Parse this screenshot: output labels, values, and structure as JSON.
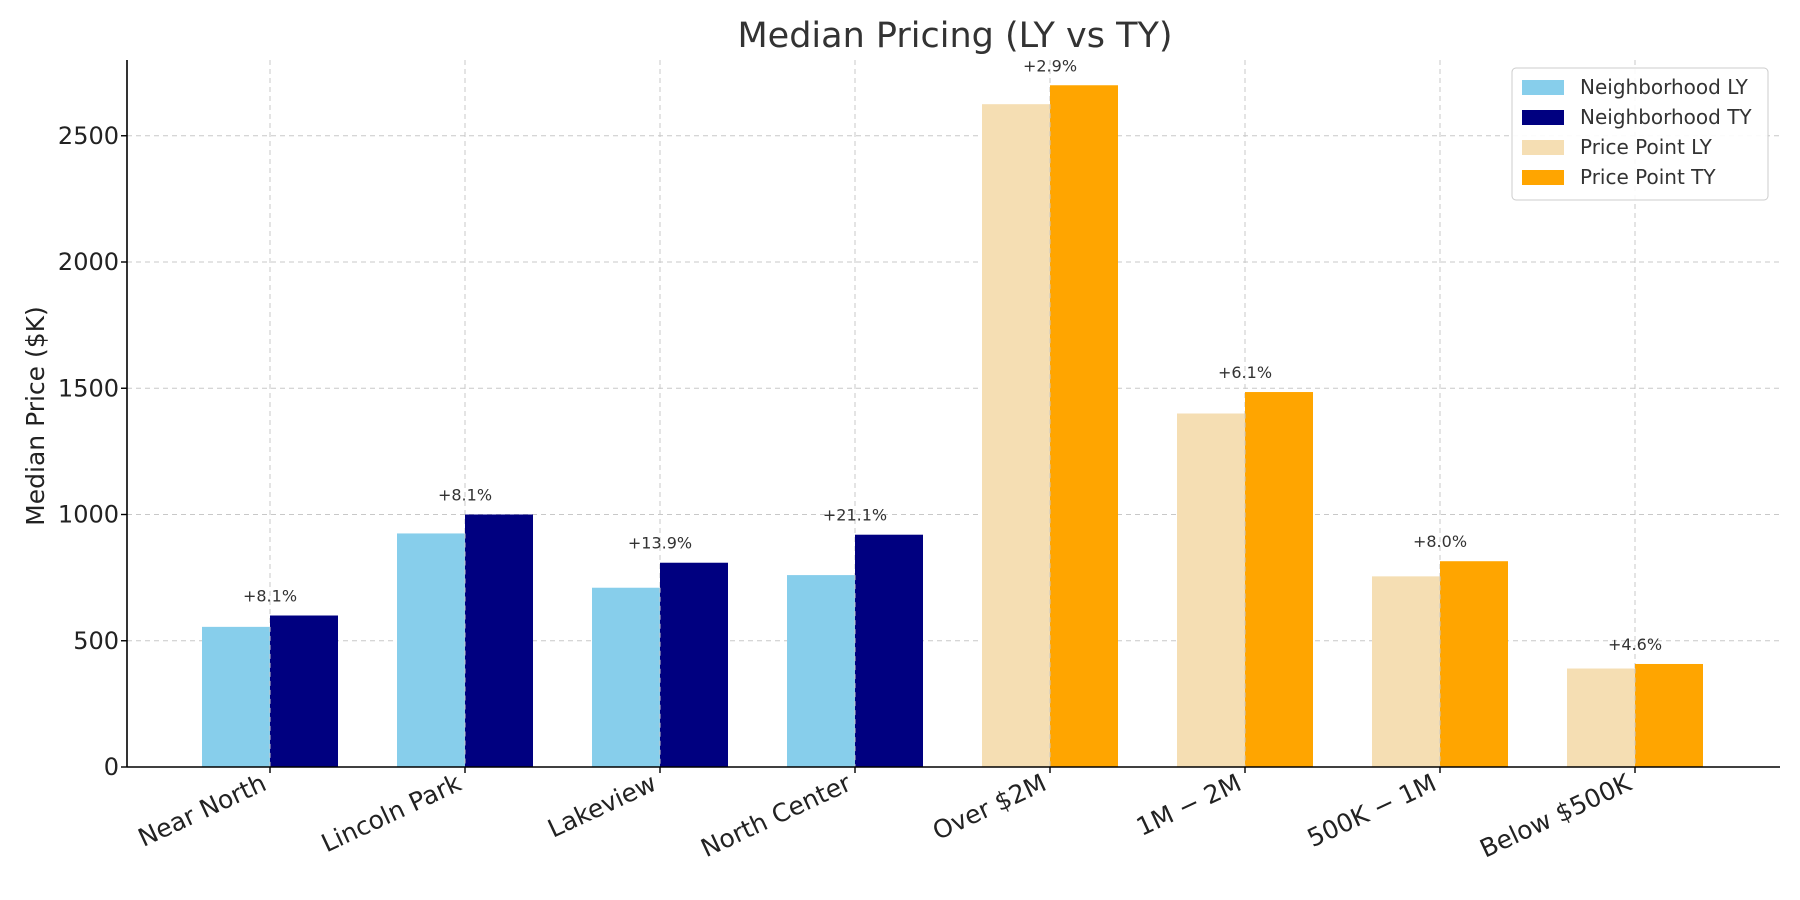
{
  "chart_data": {
    "type": "bar",
    "title": "Median Pricing (LY vs TY)",
    "xlabel": "",
    "ylabel": "Median Price ($K)",
    "ylim": [
      0,
      2800
    ],
    "yticks": [
      0,
      500,
      1000,
      1500,
      2000,
      2500
    ],
    "grid": true,
    "legend_position": "top-right",
    "categories": [
      "Near North",
      "Lincoln Park",
      "Lakeview",
      "North Center",
      "Over $2M",
      "$1M - $2M",
      "$500K - $1M",
      "Below $500K"
    ],
    "category_labels": [
      "Near North",
      "Lincoln Park",
      "Lakeview",
      "North Center",
      "Over $2M",
      "1M − 2M",
      "500K − 1M",
      "Below $500K"
    ],
    "groups": [
      {
        "category": "Near North",
        "group": "Neighborhood",
        "ly": 555,
        "ty": 600,
        "change": "+8.1%"
      },
      {
        "category": "Lincoln Park",
        "group": "Neighborhood",
        "ly": 925,
        "ty": 1000,
        "change": "+8.1%"
      },
      {
        "category": "Lakeview",
        "group": "Neighborhood",
        "ly": 710,
        "ty": 809,
        "change": "+13.9%"
      },
      {
        "category": "North Center",
        "group": "Neighborhood",
        "ly": 760,
        "ty": 920,
        "change": "+21.1%"
      },
      {
        "category": "Over $2M",
        "group": "Price Point",
        "ly": 2625,
        "ty": 2700,
        "change": "+2.9%"
      },
      {
        "category": "$1M - $2M",
        "group": "Price Point",
        "ly": 1400,
        "ty": 1485,
        "change": "+6.1%"
      },
      {
        "category": "$500K - $1M",
        "group": "Price Point",
        "ly": 755,
        "ty": 815,
        "change": "+8.0%"
      },
      {
        "category": "Below $500K",
        "group": "Price Point",
        "ly": 390,
        "ty": 408,
        "change": "+4.6%"
      }
    ],
    "series": [
      {
        "name": "Neighborhood LY",
        "color": "#87ceeb"
      },
      {
        "name": "Neighborhood TY",
        "color": "#000080"
      },
      {
        "name": "Price Point LY",
        "color": "#f5deb3"
      },
      {
        "name": "Price Point TY",
        "color": "#ffa500"
      }
    ]
  }
}
